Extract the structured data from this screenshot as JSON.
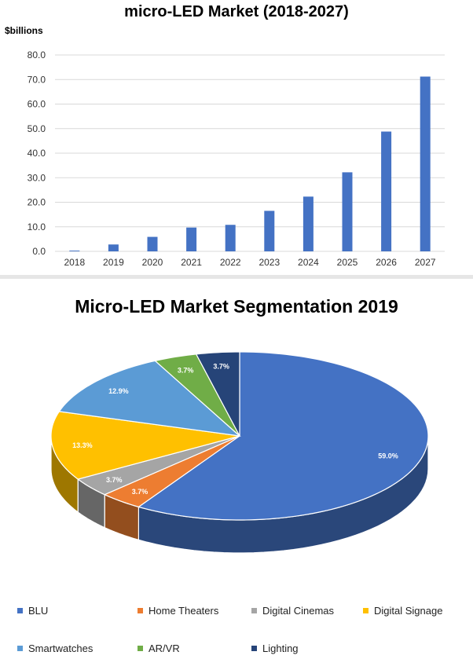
{
  "chart_data": [
    {
      "type": "bar",
      "title": "micro-LED Market (2018-2027)",
      "ylabel": "$billions",
      "xlabel": "",
      "categories": [
        "2018",
        "2019",
        "2020",
        "2021",
        "2022",
        "2023",
        "2024",
        "2025",
        "2026",
        "2027"
      ],
      "values": [
        0.3,
        2.8,
        5.9,
        9.7,
        10.8,
        16.5,
        22.3,
        32.2,
        48.8,
        71.2
      ],
      "ylim": [
        0,
        80
      ],
      "yticks": [
        "0.0",
        "10.0",
        "20.0",
        "30.0",
        "40.0",
        "50.0",
        "60.0",
        "70.0",
        "80.0"
      ],
      "grid": true,
      "bar_color": "#4472c4"
    },
    {
      "type": "pie",
      "title": "Micro-LED Market Segmentation 2019",
      "legend_position": "bottom",
      "slices": [
        {
          "label": "BLU",
          "value": 59.0,
          "text": "59.0%",
          "color": "#4472c4"
        },
        {
          "label": "Home Theaters",
          "value": 3.7,
          "text": "3.7%",
          "color": "#ed7d31"
        },
        {
          "label": "Digital Cinemas",
          "value": 3.7,
          "text": "3.7%",
          "color": "#a5a5a5"
        },
        {
          "label": "Digital Signage",
          "value": 13.3,
          "text": "13.3%",
          "color": "#ffc000"
        },
        {
          "label": "Smartwatches",
          "value": 12.9,
          "text": "12.9%",
          "color": "#5b9bd5"
        },
        {
          "label": "AR/VR",
          "value": 3.7,
          "text": "3.7%",
          "color": "#70ad47"
        },
        {
          "label": "Lighting",
          "value": 3.7,
          "text": "3.7%",
          "color": "#264478"
        }
      ]
    }
  ]
}
